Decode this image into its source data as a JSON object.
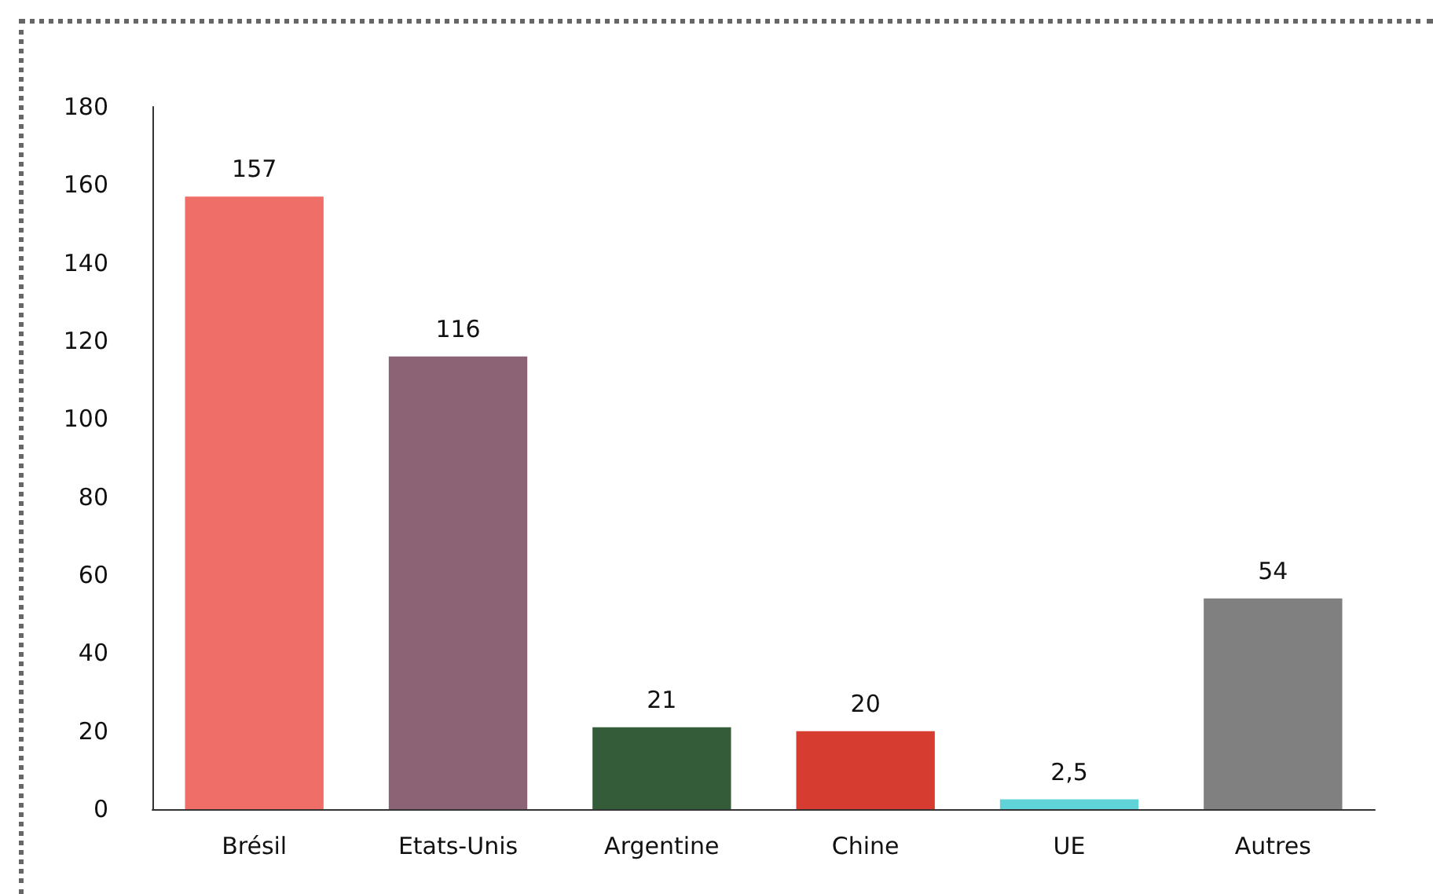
{
  "chart_data": {
    "type": "bar",
    "categories": [
      "Brésil",
      "Etats-Unis",
      "Argentine",
      "Chine",
      "UE",
      "Autres"
    ],
    "values": [
      157,
      116,
      21,
      20,
      2.5,
      54
    ],
    "colors": [
      "#ef6e67",
      "#8c6275",
      "#355c38",
      "#d63c30",
      "#5fd3d8",
      "#808080"
    ],
    "value_labels": [
      "157",
      "116",
      "21",
      "20",
      "2,5",
      "54"
    ],
    "ylim": [
      0,
      180
    ],
    "yticks": [
      0,
      20,
      40,
      60,
      80,
      100,
      120,
      140,
      160,
      180
    ],
    "grid": false
  }
}
